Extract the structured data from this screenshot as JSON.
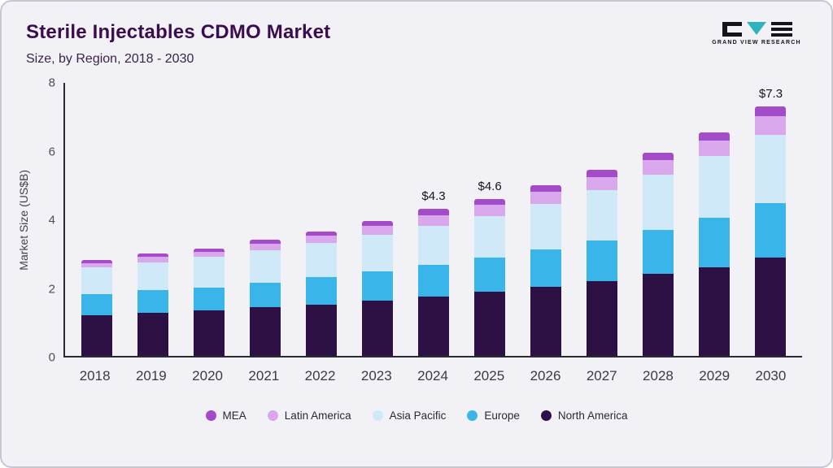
{
  "header": {
    "title": "Sterile Injectables CDMO Market",
    "subtitle": "Size, by Region, 2018 - 2030"
  },
  "logo": {
    "brand": "GRAND VIEW RESEARCH",
    "accent_color": "#2fb4bd"
  },
  "chart_data": {
    "type": "bar",
    "stacked": true,
    "title": "Sterile Injectables CDMO Market Size, by Region, 2018 - 2030",
    "xlabel": "",
    "ylabel": "Market Size (US$B)",
    "ylim": [
      0,
      8
    ],
    "yticks": [
      0,
      2,
      4,
      6,
      8
    ],
    "grid": false,
    "legend_position": "bottom",
    "categories": [
      "2018",
      "2019",
      "2020",
      "2021",
      "2022",
      "2023",
      "2024",
      "2025",
      "2026",
      "2027",
      "2028",
      "2029",
      "2030"
    ],
    "series": [
      {
        "name": "North America",
        "color": "#2d1145",
        "values": [
          1.2,
          1.27,
          1.33,
          1.42,
          1.5,
          1.63,
          1.75,
          1.88,
          2.03,
          2.2,
          2.4,
          2.6,
          2.88
        ]
      },
      {
        "name": "Europe",
        "color": "#3ab5e9",
        "values": [
          0.62,
          0.65,
          0.68,
          0.73,
          0.8,
          0.85,
          0.92,
          1.0,
          1.08,
          1.18,
          1.3,
          1.45,
          1.6
        ]
      },
      {
        "name": "Asia Pacific",
        "color": "#cfe9f8",
        "values": [
          0.78,
          0.83,
          0.9,
          0.95,
          1.02,
          1.08,
          1.15,
          1.22,
          1.35,
          1.47,
          1.6,
          1.8,
          2.0
        ]
      },
      {
        "name": "Latin America",
        "color": "#d9a7ec",
        "values": [
          0.12,
          0.15,
          0.14,
          0.18,
          0.2,
          0.24,
          0.31,
          0.32,
          0.36,
          0.4,
          0.43,
          0.45,
          0.55
        ]
      },
      {
        "name": "MEA",
        "color": "#a34bc9",
        "values": [
          0.08,
          0.1,
          0.1,
          0.12,
          0.13,
          0.15,
          0.17,
          0.18,
          0.18,
          0.2,
          0.22,
          0.25,
          0.27
        ]
      }
    ],
    "totals": [
      2.8,
      3.0,
      3.15,
      3.4,
      3.65,
      3.95,
      4.3,
      4.6,
      5.0,
      5.45,
      5.95,
      6.55,
      7.3
    ],
    "annotations": [
      "",
      "",
      "",
      "",
      "",
      "",
      "$4.3",
      "$4.6",
      "",
      "",
      "",
      "",
      "$7.3"
    ],
    "legend_order": [
      "MEA",
      "Latin America",
      "Asia Pacific",
      "Europe",
      "North America"
    ]
  }
}
